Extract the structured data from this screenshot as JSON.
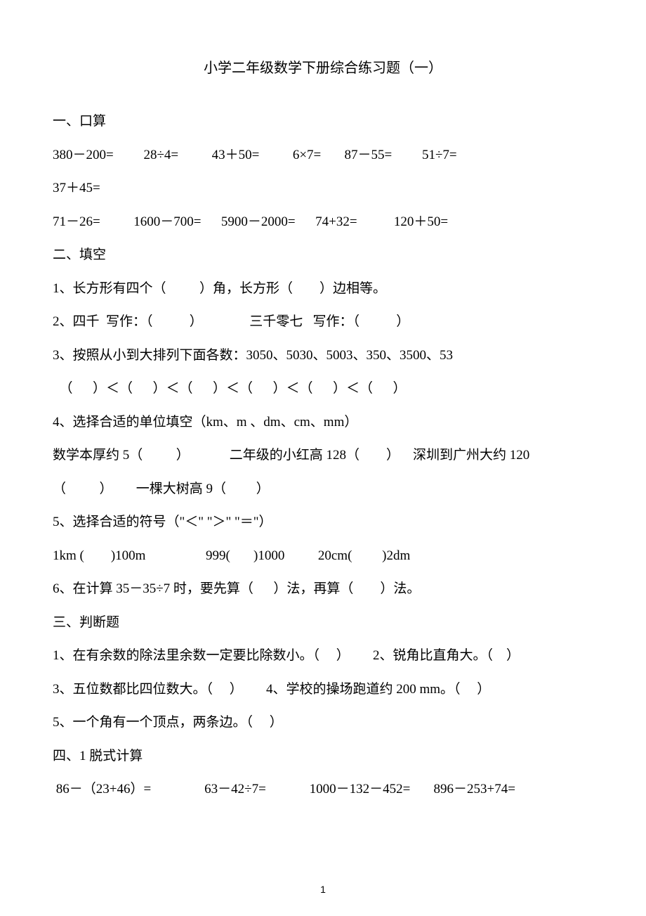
{
  "title": "小学二年级数学下册综合练习题（一）",
  "section1_header": "一、口算",
  "s1_line1": "380－200=         28÷4=          43＋50=          6×7=       87－55=         51÷7=",
  "s1_line2": "37＋45=",
  "s1_line3": "71－26=          1600－700=      5900－2000=      74+32=           120＋50=",
  "section2_header": "二、填空",
  "s2_q1": "1、长方形有四个（          ）角，长方形（        ）边相等。",
  "s2_q2": "2、四千  写作：（           ）              三千零七   写作：（           ）",
  "s2_q3a": "3、按照从小到大排列下面各数：3050、5030、5003、350、3500、53",
  "s2_q3b": "  （      ）＜（      ）＜（      ）＜（      ）＜（      ）＜（      ）",
  "s2_q4a": "4、选择合适的单位填空（km、m 、dm、cm、mm）",
  "s2_q4b": "数学本厚约 5（          ）            二年级的小红高 128（        ）    深圳到广州大约 120",
  "s2_q4c": "（          ）       一棵大树高 9（         ）",
  "s2_q5a": "5、选择合适的符号（\"＜\" \"＞\" \"＝\"）",
  "s2_q5b": "1km (        )100m                  999(       )1000          20cm(         )2dm",
  "s2_q6": "6、在计算 35－35÷7 时，要先算（      ）法，再算（        ）法。",
  "section3_header": "三、判断题",
  "s3_q1": "1、在有余数的除法里余数一定要比除数小。（     ）       2、锐角比直角大。（    ）",
  "s3_q3": "3、五位数都比四位数大。（     ）       4、学校的操场跑道约 200 mm。（     ）",
  "s3_q5": "5、一个角有一个顶点，两条边。（     ）",
  "section4_header": "四、1 脱式计算",
  "s4_line1": " 86－（23+46）=                63－42÷7=             1000－132－452=       896－253+74=",
  "page_number": "1"
}
